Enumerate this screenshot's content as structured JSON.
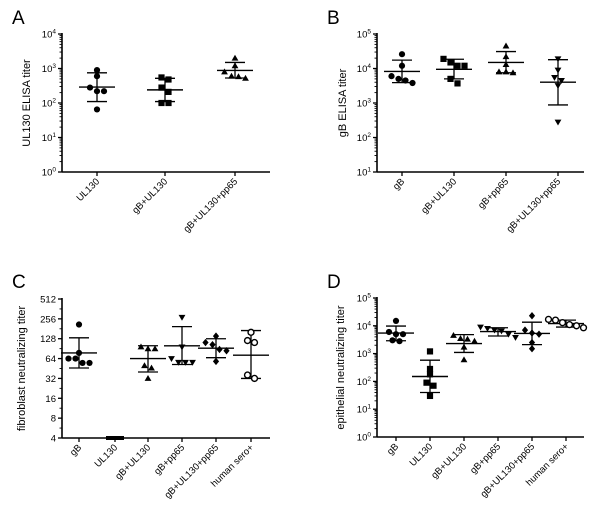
{
  "figure": {
    "panels": [
      {
        "letter": "A"
      },
      {
        "letter": "B"
      },
      {
        "letter": "C"
      },
      {
        "letter": "D"
      }
    ]
  },
  "chart_data": [
    {
      "panel": "A",
      "type": "scatter",
      "subtype": "dot plot with mean ± SD",
      "title": "",
      "xlabel": "",
      "ylabel": "UL130 ELISA titer",
      "yscale": "log10",
      "ylim": [
        1,
        10000
      ],
      "yticks": [
        1,
        10,
        100,
        1000,
        10000
      ],
      "ytick_labels": [
        "10^0",
        "10^1",
        "10^2",
        "10^3",
        "10^4"
      ],
      "categories": [
        "UL130",
        "gB+UL130",
        "gB+UL130+pp65"
      ],
      "markers": [
        "circle",
        "square",
        "triangle-up"
      ],
      "series": [
        {
          "name": "UL130",
          "values": [
            900,
            600,
            280,
            220,
            220,
            65
          ],
          "mean": 290,
          "sd_low": 110,
          "sd_high": 750
        },
        {
          "name": "gB+UL130",
          "values": [
            550,
            480,
            280,
            210,
            100,
            100
          ],
          "mean": 240,
          "sd_low": 110,
          "sd_high": 520
        },
        {
          "name": "gB+UL130+pp65",
          "values": [
            2000,
            1200,
            800,
            600,
            580,
            520
          ],
          "mean": 880,
          "sd_low": 530,
          "sd_high": 1500
        }
      ],
      "grid": false,
      "legend": null
    },
    {
      "panel": "B",
      "type": "scatter",
      "subtype": "dot plot with mean ± SD",
      "title": "",
      "xlabel": "",
      "ylabel": "gB ELISA titer",
      "yscale": "log10",
      "ylim": [
        10,
        100000
      ],
      "yticks": [
        10,
        100,
        1000,
        10000,
        100000
      ],
      "ytick_labels": [
        "10^1",
        "10^2",
        "10^3",
        "10^4",
        "10^5"
      ],
      "categories": [
        "gB",
        "gB+UL130",
        "gB+pp65",
        "gB+UL130+pp65"
      ],
      "markers": [
        "circle",
        "square",
        "triangle-up",
        "triangle-down"
      ],
      "series": [
        {
          "name": "gB",
          "values": [
            26000,
            12000,
            6000,
            5000,
            4500,
            3800
          ],
          "mean": 8200,
          "sd_low": 3900,
          "sd_high": 17500
        },
        {
          "name": "gB+UL130",
          "values": [
            19000,
            15000,
            12000,
            12000,
            5000,
            3700
          ],
          "mean": 9500,
          "sd_low": 5000,
          "sd_high": 18500
        },
        {
          "name": "gB+pp65",
          "values": [
            45000,
            22000,
            13000,
            8000,
            8000,
            7500
          ],
          "mean": 15000,
          "sd_low": 7500,
          "sd_high": 31000
        },
        {
          "name": "gB+UL130+pp65",
          "values": [
            19000,
            9000,
            5500,
            4500,
            3200,
            280
          ],
          "mean": 4000,
          "sd_low": 880,
          "sd_high": 18000
        }
      ],
      "grid": false,
      "legend": null
    },
    {
      "panel": "C",
      "type": "scatter",
      "subtype": "dot plot with mean ± SD",
      "title": "",
      "xlabel": "",
      "ylabel": "fibroblast neutralizing titer",
      "yscale": "log2",
      "ylim": [
        4,
        512
      ],
      "yticks": [
        4,
        8,
        16,
        32,
        64,
        128,
        256,
        512
      ],
      "ytick_labels": [
        "4",
        "8",
        "16",
        "32",
        "64",
        "128",
        "256",
        "512"
      ],
      "categories": [
        "gB",
        "UL130",
        "gB+UL130",
        "gB+pp65",
        "gB+UL130+pp65",
        "human sero+"
      ],
      "markers": [
        "circle",
        "square",
        "triangle-up",
        "triangle-down",
        "diamond",
        "open-circle"
      ],
      "series": [
        {
          "name": "gB",
          "values": [
            210,
            78,
            64,
            64,
            55,
            55
          ],
          "mean": 78,
          "sd_low": 46,
          "sd_high": 132
        },
        {
          "name": "UL130",
          "values": [
            4,
            4,
            4,
            4,
            4,
            4
          ],
          "mean": 4,
          "sd_low": 4,
          "sd_high": 4
        },
        {
          "name": "gB+UL130",
          "values": [
            96,
            90,
            90,
            50,
            46,
            32
          ],
          "mean": 64,
          "sd_low": 40,
          "sd_high": 100
        },
        {
          "name": "gB+pp65",
          "values": [
            270,
            96,
            64,
            56,
            56,
            56
          ],
          "mean": 100,
          "sd_low": 52,
          "sd_high": 195
        },
        {
          "name": "gB+UL130+pp65",
          "values": [
            140,
            112,
            104,
            88,
            84,
            58
          ],
          "mean": 92,
          "sd_low": 66,
          "sd_high": 128
        },
        {
          "name": "human sero+",
          "values": [
            160,
            120,
            112,
            36,
            32
          ],
          "mean": 72,
          "sd_low": 32,
          "sd_high": 170
        }
      ],
      "grid": false,
      "legend": null
    },
    {
      "panel": "D",
      "type": "scatter",
      "subtype": "dot plot with mean ± SD",
      "title": "",
      "xlabel": "",
      "ylabel": "epithelial neutralizing titer",
      "yscale": "log10",
      "ylim": [
        1,
        100000
      ],
      "yticks": [
        1,
        10,
        100,
        1000,
        10000,
        100000
      ],
      "ytick_labels": [
        "10^0",
        "10^1",
        "10^2",
        "10^3",
        "10^4",
        "10^5"
      ],
      "categories": [
        "gB",
        "UL130",
        "gB+UL130",
        "gB+pp65",
        "gB+UL130+pp65",
        "human sero+"
      ],
      "markers": [
        "circle",
        "square",
        "triangle-up",
        "triangle-down",
        "diamond",
        "open-circle"
      ],
      "series": [
        {
          "name": "gB",
          "values": [
            15000,
            6000,
            5000,
            5000,
            3000,
            2800
          ],
          "mean": 5500,
          "sd_low": 2900,
          "sd_high": 9800
        },
        {
          "name": "UL130",
          "values": [
            1200,
            280,
            180,
            90,
            70,
            30
          ],
          "mean": 150,
          "sd_low": 40,
          "sd_high": 580
        },
        {
          "name": "gB+UL130",
          "values": [
            4500,
            3500,
            3300,
            2800,
            1700,
            600
          ],
          "mean": 2300,
          "sd_low": 1100,
          "sd_high": 4800
        },
        {
          "name": "gB+pp65",
          "values": [
            9000,
            8000,
            7000,
            6500,
            5000,
            3800
          ],
          "mean": 6200,
          "sd_low": 4300,
          "sd_high": 8500
        },
        {
          "name": "gB+UL130+pp65",
          "values": [
            23000,
            7000,
            5500,
            5000,
            2500,
            1500
          ],
          "mean": 5300,
          "sd_low": 2100,
          "sd_high": 13500
        },
        {
          "name": "human sero+",
          "values": [
            17000,
            16000,
            13000,
            11000,
            10000,
            8500
          ],
          "mean": 12000,
          "sd_low": 9000,
          "sd_high": 16000
        }
      ],
      "grid": false,
      "legend": null
    }
  ]
}
